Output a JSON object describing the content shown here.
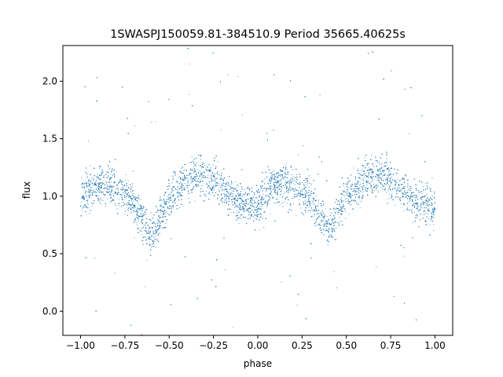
{
  "chart_data": {
    "type": "scatter",
    "title": "1SWASPJ150059.81-384510.9 Period 35665.40625s",
    "xlabel": "phase",
    "ylabel": "flux",
    "xlim": [
      -1.1,
      1.1
    ],
    "ylim": [
      -0.21,
      2.31
    ],
    "xticks": [
      -1.0,
      -0.75,
      -0.5,
      -0.25,
      0.0,
      0.25,
      0.5,
      0.75,
      1.0
    ],
    "xtick_labels": [
      "−1.00",
      "−0.75",
      "−0.50",
      "−0.25",
      "0.00",
      "0.25",
      "0.50",
      "0.75",
      "1.00"
    ],
    "yticks": [
      0.0,
      0.5,
      1.0,
      1.5,
      2.0
    ],
    "ytick_labels": [
      "0.0",
      "0.5",
      "1.0",
      "1.5",
      "2.0"
    ],
    "grid": false,
    "marker_color": "#1f77b4",
    "phase_range": [
      -1.0,
      1.0
    ],
    "series": [
      {
        "description_points": "folded light curve; main flux level ~1.1 with primary minima",
        "profile_x": [
          -1.0,
          -0.9,
          -0.8,
          -0.7,
          -0.6,
          -0.5,
          -0.4,
          -0.3,
          -0.2,
          -0.1,
          0.0,
          0.1,
          0.2,
          0.3,
          0.4,
          0.5,
          0.6,
          0.7,
          0.8,
          0.9,
          1.0
        ],
        "profile_y": [
          1.0,
          1.1,
          1.08,
          0.95,
          0.65,
          0.98,
          1.15,
          1.18,
          1.08,
          0.95,
          0.9,
          1.12,
          1.1,
          0.98,
          0.68,
          1.0,
          1.15,
          1.2,
          1.08,
          0.95,
          0.9
        ]
      }
    ]
  }
}
